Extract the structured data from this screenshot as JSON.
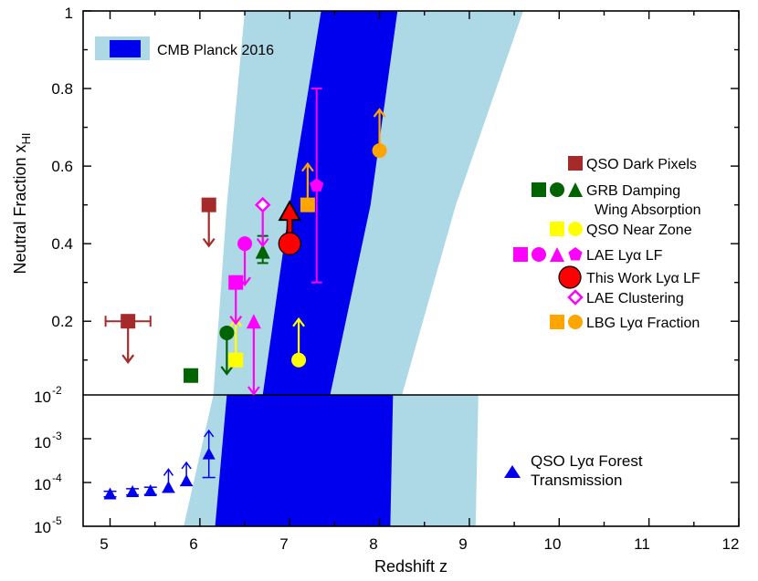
{
  "chart_data": {
    "type": "scatter",
    "xlabel": "Redshift z",
    "ylabel_main": "Neutral Fraction x",
    "ylabel_sub": "HI",
    "xlim": [
      4.7,
      12
    ],
    "ylim_top": [
      0.01,
      1.0
    ],
    "ylim_bottom": [
      1e-05,
      0.01
    ],
    "x_ticks": [
      "5",
      "6",
      "7",
      "8",
      "9",
      "10",
      "11",
      "12"
    ],
    "y_ticks_top": [
      "0.2",
      "0.4",
      "0.6",
      "0.8",
      "1"
    ],
    "y_tick_top_bottom_label": "10",
    "y_tick_top_bottom_exp": "-2",
    "y_ticks_bottom": [
      {
        "base": "10",
        "exp": "-3"
      },
      {
        "base": "10",
        "exp": "-4"
      },
      {
        "base": "10",
        "exp": "-5"
      }
    ],
    "colors": {
      "light_band": "#add8e6",
      "dark_band": "#0000ee",
      "qso_dark": "#a52a2a",
      "grb": "#006400",
      "qso_near": "#ffff00",
      "lae": "#ff00ff",
      "this_work": "#ff0000",
      "lbg": "#ffa500",
      "forest": "#0000ee"
    },
    "cmb_band": {
      "light_top": [
        [
          6.5,
          1.0
        ],
        [
          6.3,
          0.5
        ],
        [
          6.15,
          0.0
        ]
      ],
      "light_bottom": [
        [
          9.6,
          1.0
        ],
        [
          8.85,
          0.5
        ],
        [
          8.25,
          0.0
        ]
      ],
      "dark_top": [
        [
          7.35,
          1.0
        ],
        [
          7.0,
          0.5
        ],
        [
          6.7,
          0.0
        ]
      ],
      "dark_bottom": [
        [
          8.2,
          1.0
        ],
        [
          7.9,
          0.5
        ],
        [
          7.45,
          0.0
        ]
      ]
    },
    "legend_cmb": "CMB Planck 2016",
    "legend": [
      {
        "label": "QSO Dark Pixels",
        "color": "#a52a2a",
        "shapes": [
          "square"
        ]
      },
      {
        "label": "GRB Damping",
        "label2": "Wing Absorption",
        "color": "#006400",
        "shapes": [
          "square",
          "circle",
          "triangle"
        ]
      },
      {
        "label": "QSO Near Zone",
        "color": "#ffff00",
        "shapes": [
          "square",
          "circle"
        ]
      },
      {
        "label": "LAE Lyα LF",
        "color": "#ff00ff",
        "shapes": [
          "square",
          "circle",
          "triangle",
          "pentagon"
        ]
      },
      {
        "label": "This Work Lyα LF",
        "color": "#ff0000",
        "shapes": [
          "bigcircle"
        ]
      },
      {
        "label": "LAE Clustering",
        "color": "#ff00ff",
        "shapes": [
          "diamond"
        ]
      },
      {
        "label": "LBG Lyα Fraction",
        "color": "#ffa500",
        "shapes": [
          "square",
          "circle"
        ]
      }
    ],
    "legend_bottom": {
      "label": "QSO Lyα Forest",
      "label2": "Transmission",
      "color": "#0000ee"
    },
    "points_top": [
      {
        "series": "QSO Dark Pixels",
        "shape": "square",
        "color": "#a52a2a",
        "x": 5.2,
        "y": 0.2,
        "xerr": [
          0.25,
          0.25
        ],
        "limit": "upper"
      },
      {
        "series": "QSO Dark Pixels",
        "shape": "square",
        "color": "#a52a2a",
        "x": 6.1,
        "y": 0.5,
        "limit": "upper"
      },
      {
        "series": "GRB",
        "shape": "square",
        "color": "#006400",
        "x": 5.9,
        "y": 0.06
      },
      {
        "series": "GRB",
        "shape": "circle",
        "color": "#006400",
        "x": 6.3,
        "y": 0.17,
        "limit": "upper"
      },
      {
        "series": "GRB",
        "shape": "triangle",
        "color": "#006400",
        "x": 6.7,
        "y": 0.38,
        "yerr": [
          0.03,
          0.04
        ]
      },
      {
        "series": "QSO Near Zone",
        "shape": "square",
        "color": "#ffff00",
        "x": 6.4,
        "y": 0.1,
        "limit": "lower"
      },
      {
        "series": "QSO Near Zone",
        "shape": "circle",
        "color": "#ffff00",
        "x": 7.1,
        "y": 0.1,
        "limit": "lower"
      },
      {
        "series": "LAE LF",
        "shape": "square",
        "color": "#ff00ff",
        "x": 6.4,
        "y": 0.3,
        "limit": "upper"
      },
      {
        "series": "LAE LF",
        "shape": "circle",
        "color": "#ff00ff",
        "x": 6.5,
        "y": 0.4,
        "limit": "upper"
      },
      {
        "series": "LAE LF",
        "shape": "triangle",
        "color": "#ff00ff",
        "x": 6.6,
        "y": 0.2,
        "limit": "upper"
      },
      {
        "series": "LAE LF",
        "shape": "pentagon",
        "color": "#ff00ff",
        "x": 7.3,
        "y": 0.55,
        "yerr": [
          0.25,
          0.25
        ]
      },
      {
        "series": "This Work",
        "shape": "bigcircle",
        "color": "#ff0000",
        "x": 7.0,
        "y": 0.4,
        "limit": "lower"
      },
      {
        "series": "LAE Clustering",
        "shape": "diamond",
        "color": "#ff00ff",
        "x": 6.7,
        "y": 0.5,
        "limit": "upper"
      },
      {
        "series": "LBG",
        "shape": "square",
        "color": "#ffa500",
        "x": 7.2,
        "y": 0.5,
        "limit": "lower"
      },
      {
        "series": "LBG",
        "shape": "circle",
        "color": "#ffa500",
        "x": 8.0,
        "y": 0.64,
        "limit": "lower"
      }
    ],
    "points_bottom": [
      {
        "x": 5.0,
        "y": 5.5e-05,
        "lo": 4.7e-05,
        "hi": 6.3e-05
      },
      {
        "x": 5.25,
        "y": 6.2e-05,
        "lo": 5.2e-05,
        "hi": 7.2e-05
      },
      {
        "x": 5.45,
        "y": 6.5e-05,
        "lo": 5.3e-05,
        "hi": 7.8e-05
      },
      {
        "x": 5.65,
        "y": 7.8e-05,
        "lo": 6e-05,
        "hi": 9.8e-05,
        "lower_limit": true
      },
      {
        "x": 5.85,
        "y": 0.00011,
        "lo": 8.5e-05,
        "hi": 0.00014,
        "lower_limit": true
      },
      {
        "x": 6.1,
        "y": 0.00045,
        "lo": 0.00013,
        "hi": 0.00075,
        "lower_limit": true
      }
    ]
  }
}
